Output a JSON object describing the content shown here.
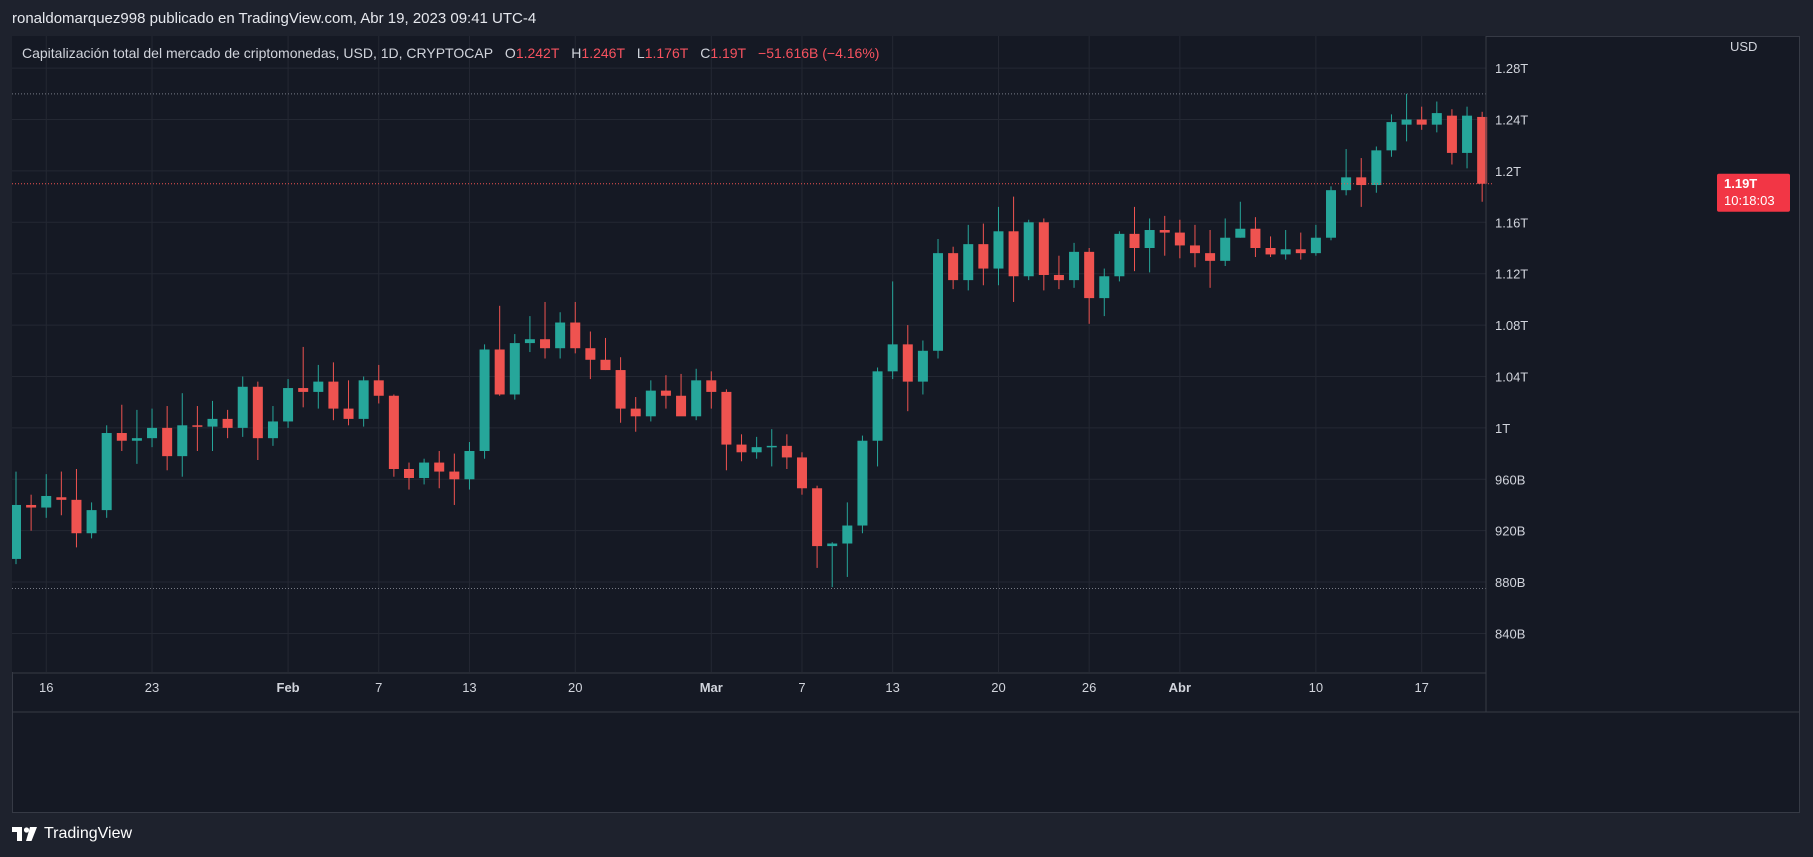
{
  "header": {
    "publish_line": "ronaldomarquez998 publicado en TradingView.com, Abr 19, 2023 09:41 UTC-4"
  },
  "legend": {
    "title": "Capitalización total del mercado de criptomonedas, USD, 1D, CRYPTOCAP",
    "open_label": "O",
    "open_value": "1.242T",
    "high_label": "H",
    "high_value": "1.246T",
    "low_label": "L",
    "low_value": "1.176T",
    "close_label": "C",
    "close_value": "1.19T",
    "change_value": "−51.616B (−4.16%)"
  },
  "price_tag": {
    "price": "1.19T",
    "countdown": "10:18:03"
  },
  "footer": {
    "brand": "TradingView"
  },
  "colors": {
    "up": "#26a69a",
    "down": "#ef5350",
    "background": "#151924",
    "grid": "#242833"
  },
  "chart_data": {
    "type": "candlestick",
    "currency_label": "USD",
    "ylim": [
      0.81,
      1.305
    ],
    "y_ticks": [
      {
        "value": 1.28,
        "label": "1.28T"
      },
      {
        "value": 1.24,
        "label": "1.24T"
      },
      {
        "value": 1.2,
        "label": "1.2T"
      },
      {
        "value": 1.16,
        "label": "1.16T"
      },
      {
        "value": 1.12,
        "label": "1.12T"
      },
      {
        "value": 1.08,
        "label": "1.08T"
      },
      {
        "value": 1.04,
        "label": "1.04T"
      },
      {
        "value": 1.0,
        "label": "1T"
      },
      {
        "value": 0.96,
        "label": "960B"
      },
      {
        "value": 0.92,
        "label": "920B"
      },
      {
        "value": 0.88,
        "label": "880B"
      },
      {
        "value": 0.84,
        "label": "840B"
      }
    ],
    "x_ticks": [
      {
        "index": 2,
        "label": "16",
        "bold": false
      },
      {
        "index": 9,
        "label": "23",
        "bold": false
      },
      {
        "index": 18,
        "label": "Feb",
        "bold": true
      },
      {
        "index": 24,
        "label": "7",
        "bold": false
      },
      {
        "index": 30,
        "label": "13",
        "bold": false
      },
      {
        "index": 37,
        "label": "20",
        "bold": false
      },
      {
        "index": 46,
        "label": "Mar",
        "bold": true
      },
      {
        "index": 52,
        "label": "7",
        "bold": false
      },
      {
        "index": 58,
        "label": "13",
        "bold": false
      },
      {
        "index": 65,
        "label": "20",
        "bold": false
      },
      {
        "index": 71,
        "label": "26",
        "bold": false
      },
      {
        "index": 77,
        "label": "Abr",
        "bold": true
      },
      {
        "index": 86,
        "label": "10",
        "bold": false
      },
      {
        "index": 93,
        "label": "17",
        "bold": false
      }
    ],
    "range_high": 1.26,
    "range_low": 0.875,
    "last_price": 1.19,
    "candles": [
      {
        "o": 0.898,
        "h": 0.966,
        "l": 0.894,
        "c": 0.94
      },
      {
        "o": 0.94,
        "h": 0.948,
        "l": 0.92,
        "c": 0.938
      },
      {
        "o": 0.938,
        "h": 0.964,
        "l": 0.93,
        "c": 0.947
      },
      {
        "o": 0.946,
        "h": 0.966,
        "l": 0.932,
        "c": 0.944
      },
      {
        "o": 0.944,
        "h": 0.968,
        "l": 0.907,
        "c": 0.918
      },
      {
        "o": 0.918,
        "h": 0.942,
        "l": 0.914,
        "c": 0.936
      },
      {
        "o": 0.936,
        "h": 1.002,
        "l": 0.93,
        "c": 0.996
      },
      {
        "o": 0.996,
        "h": 1.018,
        "l": 0.982,
        "c": 0.99
      },
      {
        "o": 0.99,
        "h": 1.014,
        "l": 0.972,
        "c": 0.992
      },
      {
        "o": 0.992,
        "h": 1.015,
        "l": 0.985,
        "c": 1.0
      },
      {
        "o": 1.0,
        "h": 1.017,
        "l": 0.967,
        "c": 0.978
      },
      {
        "o": 0.978,
        "h": 1.027,
        "l": 0.962,
        "c": 1.002
      },
      {
        "o": 1.002,
        "h": 1.017,
        "l": 0.982,
        "c": 1.001
      },
      {
        "o": 1.001,
        "h": 1.021,
        "l": 0.982,
        "c": 1.007
      },
      {
        "o": 1.007,
        "h": 1.014,
        "l": 0.992,
        "c": 1.0
      },
      {
        "o": 1.0,
        "h": 1.04,
        "l": 0.993,
        "c": 1.032
      },
      {
        "o": 1.032,
        "h": 1.036,
        "l": 0.975,
        "c": 0.992
      },
      {
        "o": 0.992,
        "h": 1.017,
        "l": 0.986,
        "c": 1.005
      },
      {
        "o": 1.005,
        "h": 1.038,
        "l": 1.0,
        "c": 1.031
      },
      {
        "o": 1.031,
        "h": 1.063,
        "l": 1.016,
        "c": 1.028
      },
      {
        "o": 1.028,
        "h": 1.049,
        "l": 1.015,
        "c": 1.036
      },
      {
        "o": 1.036,
        "h": 1.051,
        "l": 1.006,
        "c": 1.015
      },
      {
        "o": 1.015,
        "h": 1.037,
        "l": 1.002,
        "c": 1.007
      },
      {
        "o": 1.007,
        "h": 1.04,
        "l": 1.001,
        "c": 1.037
      },
      {
        "o": 1.037,
        "h": 1.049,
        "l": 1.019,
        "c": 1.025
      },
      {
        "o": 1.025,
        "h": 1.026,
        "l": 0.962,
        "c": 0.968
      },
      {
        "o": 0.968,
        "h": 0.973,
        "l": 0.952,
        "c": 0.961
      },
      {
        "o": 0.961,
        "h": 0.976,
        "l": 0.956,
        "c": 0.973
      },
      {
        "o": 0.973,
        "h": 0.982,
        "l": 0.953,
        "c": 0.966
      },
      {
        "o": 0.966,
        "h": 0.98,
        "l": 0.94,
        "c": 0.96
      },
      {
        "o": 0.96,
        "h": 0.989,
        "l": 0.952,
        "c": 0.982
      },
      {
        "o": 0.982,
        "h": 1.065,
        "l": 0.976,
        "c": 1.061
      },
      {
        "o": 1.061,
        "h": 1.095,
        "l": 1.025,
        "c": 1.026
      },
      {
        "o": 1.026,
        "h": 1.073,
        "l": 1.022,
        "c": 1.066
      },
      {
        "o": 1.066,
        "h": 1.087,
        "l": 1.059,
        "c": 1.069
      },
      {
        "o": 1.069,
        "h": 1.098,
        "l": 1.054,
        "c": 1.062
      },
      {
        "o": 1.062,
        "h": 1.09,
        "l": 1.054,
        "c": 1.082
      },
      {
        "o": 1.082,
        "h": 1.098,
        "l": 1.058,
        "c": 1.062
      },
      {
        "o": 1.062,
        "h": 1.075,
        "l": 1.038,
        "c": 1.053
      },
      {
        "o": 1.053,
        "h": 1.07,
        "l": 1.045,
        "c": 1.045
      },
      {
        "o": 1.045,
        "h": 1.055,
        "l": 1.004,
        "c": 1.015
      },
      {
        "o": 1.015,
        "h": 1.024,
        "l": 0.997,
        "c": 1.009
      },
      {
        "o": 1.009,
        "h": 1.037,
        "l": 1.005,
        "c": 1.029
      },
      {
        "o": 1.029,
        "h": 1.041,
        "l": 1.015,
        "c": 1.025
      },
      {
        "o": 1.025,
        "h": 1.042,
        "l": 1.012,
        "c": 1.009
      },
      {
        "o": 1.009,
        "h": 1.046,
        "l": 1.006,
        "c": 1.037
      },
      {
        "o": 1.037,
        "h": 1.044,
        "l": 1.015,
        "c": 1.028
      },
      {
        "o": 1.028,
        "h": 1.03,
        "l": 0.967,
        "c": 0.987
      },
      {
        "o": 0.987,
        "h": 0.995,
        "l": 0.974,
        "c": 0.981
      },
      {
        "o": 0.981,
        "h": 0.993,
        "l": 0.976,
        "c": 0.985
      },
      {
        "o": 0.985,
        "h": 0.999,
        "l": 0.97,
        "c": 0.986
      },
      {
        "o": 0.986,
        "h": 0.995,
        "l": 0.968,
        "c": 0.977
      },
      {
        "o": 0.977,
        "h": 0.981,
        "l": 0.948,
        "c": 0.953
      },
      {
        "o": 0.953,
        "h": 0.955,
        "l": 0.891,
        "c": 0.908
      },
      {
        "o": 0.908,
        "h": 0.911,
        "l": 0.876,
        "c": 0.91
      },
      {
        "o": 0.91,
        "h": 0.942,
        "l": 0.884,
        "c": 0.924
      },
      {
        "o": 0.924,
        "h": 0.994,
        "l": 0.918,
        "c": 0.99
      },
      {
        "o": 0.99,
        "h": 1.047,
        "l": 0.97,
        "c": 1.044
      },
      {
        "o": 1.044,
        "h": 1.114,
        "l": 1.038,
        "c": 1.065
      },
      {
        "o": 1.065,
        "h": 1.08,
        "l": 1.013,
        "c": 1.036
      },
      {
        "o": 1.036,
        "h": 1.068,
        "l": 1.026,
        "c": 1.06
      },
      {
        "o": 1.06,
        "h": 1.147,
        "l": 1.054,
        "c": 1.136
      },
      {
        "o": 1.136,
        "h": 1.141,
        "l": 1.108,
        "c": 1.115
      },
      {
        "o": 1.115,
        "h": 1.158,
        "l": 1.107,
        "c": 1.143
      },
      {
        "o": 1.143,
        "h": 1.159,
        "l": 1.111,
        "c": 1.124
      },
      {
        "o": 1.124,
        "h": 1.172,
        "l": 1.111,
        "c": 1.153
      },
      {
        "o": 1.153,
        "h": 1.18,
        "l": 1.098,
        "c": 1.118
      },
      {
        "o": 1.118,
        "h": 1.162,
        "l": 1.115,
        "c": 1.16
      },
      {
        "o": 1.16,
        "h": 1.163,
        "l": 1.107,
        "c": 1.119
      },
      {
        "o": 1.119,
        "h": 1.134,
        "l": 1.108,
        "c": 1.115
      },
      {
        "o": 1.115,
        "h": 1.144,
        "l": 1.109,
        "c": 1.137
      },
      {
        "o": 1.137,
        "h": 1.14,
        "l": 1.081,
        "c": 1.101
      },
      {
        "o": 1.101,
        "h": 1.124,
        "l": 1.087,
        "c": 1.118
      },
      {
        "o": 1.118,
        "h": 1.153,
        "l": 1.114,
        "c": 1.151
      },
      {
        "o": 1.151,
        "h": 1.172,
        "l": 1.122,
        "c": 1.14
      },
      {
        "o": 1.14,
        "h": 1.163,
        "l": 1.121,
        "c": 1.154
      },
      {
        "o": 1.154,
        "h": 1.165,
        "l": 1.134,
        "c": 1.152
      },
      {
        "o": 1.152,
        "h": 1.162,
        "l": 1.132,
        "c": 1.142
      },
      {
        "o": 1.142,
        "h": 1.158,
        "l": 1.125,
        "c": 1.136
      },
      {
        "o": 1.136,
        "h": 1.154,
        "l": 1.109,
        "c": 1.13
      },
      {
        "o": 1.13,
        "h": 1.163,
        "l": 1.126,
        "c": 1.148
      },
      {
        "o": 1.148,
        "h": 1.176,
        "l": 1.148,
        "c": 1.155
      },
      {
        "o": 1.155,
        "h": 1.164,
        "l": 1.133,
        "c": 1.14
      },
      {
        "o": 1.14,
        "h": 1.149,
        "l": 1.133,
        "c": 1.135
      },
      {
        "o": 1.135,
        "h": 1.154,
        "l": 1.131,
        "c": 1.139
      },
      {
        "o": 1.139,
        "h": 1.152,
        "l": 1.131,
        "c": 1.136
      },
      {
        "o": 1.136,
        "h": 1.158,
        "l": 1.134,
        "c": 1.148
      },
      {
        "o": 1.148,
        "h": 1.188,
        "l": 1.146,
        "c": 1.185
      },
      {
        "o": 1.185,
        "h": 1.217,
        "l": 1.181,
        "c": 1.195
      },
      {
        "o": 1.195,
        "h": 1.21,
        "l": 1.172,
        "c": 1.189
      },
      {
        "o": 1.189,
        "h": 1.219,
        "l": 1.183,
        "c": 1.216
      },
      {
        "o": 1.216,
        "h": 1.244,
        "l": 1.211,
        "c": 1.238
      },
      {
        "o": 1.236,
        "h": 1.26,
        "l": 1.223,
        "c": 1.24
      },
      {
        "o": 1.24,
        "h": 1.25,
        "l": 1.232,
        "c": 1.236
      },
      {
        "o": 1.236,
        "h": 1.254,
        "l": 1.23,
        "c": 1.245
      },
      {
        "o": 1.243,
        "h": 1.248,
        "l": 1.205,
        "c": 1.214
      },
      {
        "o": 1.214,
        "h": 1.25,
        "l": 1.202,
        "c": 1.243
      },
      {
        "o": 1.242,
        "h": 1.246,
        "l": 1.176,
        "c": 1.19
      }
    ]
  }
}
